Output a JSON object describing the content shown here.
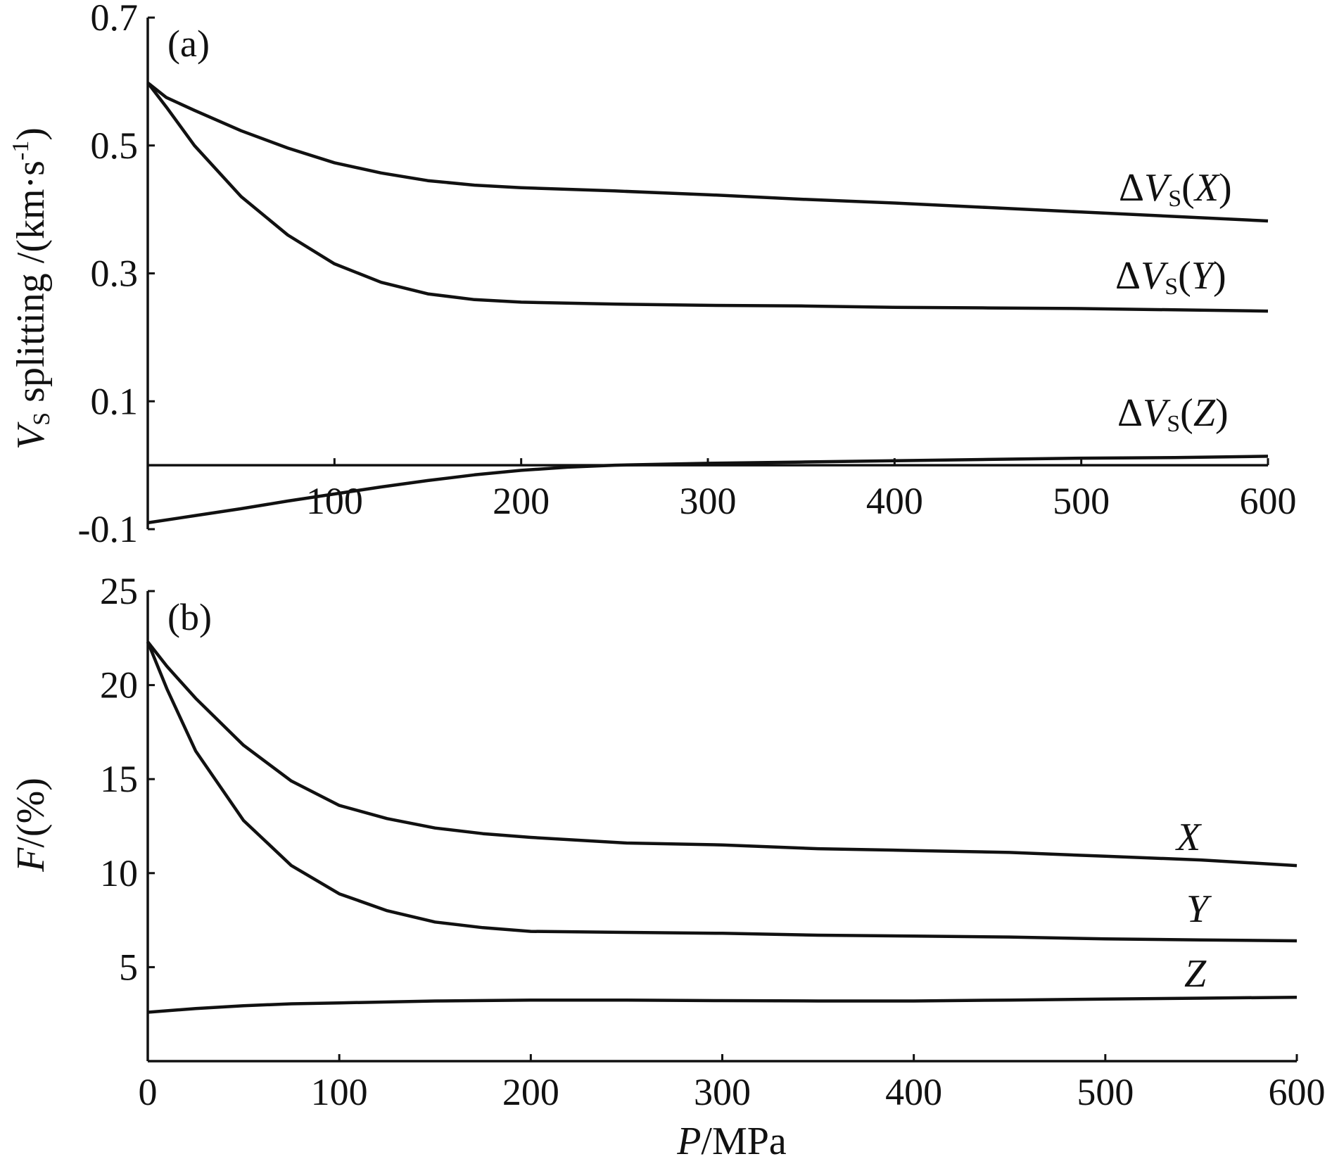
{
  "chart_data": [
    {
      "type": "line",
      "panel_label": "(a)",
      "ylabel_parts": {
        "main": "V",
        "sub": "S",
        "rest": " splitting /(km·s",
        "sup": "-1",
        "close": ")"
      },
      "xlim": [
        0,
        600
      ],
      "ylim": [
        -0.1,
        0.7
      ],
      "xticks": [
        100,
        200,
        300,
        400,
        500,
        600
      ],
      "yticks": [
        -0.1,
        0.1,
        0.3,
        0.5,
        0.7
      ],
      "ytick_labels": [
        "-0.1",
        "0.1",
        "0.3",
        "0.5",
        "0.7"
      ],
      "zero_line": 0,
      "series": [
        {
          "name": "ΔVS(X)",
          "label_parts": {
            "delta": "Δ",
            "v": "V",
            "sub": "S",
            "open": "(",
            "dir": "X",
            "close": ")"
          },
          "x": [
            0,
            10,
            25,
            50,
            75,
            100,
            125,
            150,
            175,
            200,
            250,
            300,
            350,
            400,
            450,
            500,
            550,
            600
          ],
          "y": [
            0.598,
            0.575,
            0.555,
            0.523,
            0.496,
            0.473,
            0.457,
            0.445,
            0.438,
            0.434,
            0.429,
            0.423,
            0.416,
            0.41,
            0.403,
            0.396,
            0.389,
            0.382
          ]
        },
        {
          "name": "ΔVS(Y)",
          "label_parts": {
            "delta": "Δ",
            "v": "V",
            "sub": "S",
            "open": "(",
            "dir": "Y",
            "close": ")"
          },
          "x": [
            0,
            10,
            25,
            50,
            75,
            100,
            125,
            150,
            175,
            200,
            250,
            300,
            350,
            400,
            450,
            500,
            550,
            600
          ],
          "y": [
            0.598,
            0.56,
            0.5,
            0.42,
            0.36,
            0.315,
            0.286,
            0.268,
            0.259,
            0.255,
            0.252,
            0.25,
            0.249,
            0.247,
            0.246,
            0.245,
            0.243,
            0.241
          ]
        },
        {
          "name": "ΔVS(Z)",
          "label_parts": {
            "delta": "Δ",
            "v": "V",
            "sub": "S",
            "open": "(",
            "dir": "Z",
            "close": ")"
          },
          "x": [
            0,
            25,
            50,
            75,
            100,
            125,
            150,
            175,
            200,
            225,
            250,
            300,
            350,
            400,
            450,
            500,
            550,
            600
          ],
          "y": [
            -0.09,
            -0.079,
            -0.068,
            -0.056,
            -0.045,
            -0.034,
            -0.024,
            -0.015,
            -0.008,
            -0.003,
            0.0,
            0.003,
            0.005,
            0.007,
            0.009,
            0.011,
            0.012,
            0.014
          ]
        }
      ]
    },
    {
      "type": "line",
      "panel_label": "(b)",
      "ylabel_parts": {
        "main": "F",
        "rest": "/(%)"
      },
      "xlabel_parts": {
        "main": "P",
        "rest": "/MPa"
      },
      "xlim": [
        0,
        600
      ],
      "ylim": [
        0,
        25
      ],
      "xticks": [
        0,
        100,
        200,
        300,
        400,
        500,
        600
      ],
      "yticks": [
        5,
        10,
        15,
        20,
        25
      ],
      "series": [
        {
          "name": "X",
          "x": [
            0,
            10,
            25,
            50,
            75,
            100,
            125,
            150,
            175,
            200,
            250,
            300,
            350,
            400,
            450,
            500,
            550,
            600
          ],
          "y": [
            22.3,
            21.0,
            19.3,
            16.8,
            14.9,
            13.6,
            12.9,
            12.4,
            12.1,
            11.9,
            11.6,
            11.5,
            11.3,
            11.2,
            11.1,
            10.9,
            10.7,
            10.4
          ]
        },
        {
          "name": "Y",
          "x": [
            0,
            10,
            25,
            50,
            75,
            100,
            125,
            150,
            175,
            200,
            250,
            300,
            350,
            400,
            450,
            500,
            550,
            600
          ],
          "y": [
            22.3,
            19.8,
            16.5,
            12.8,
            10.4,
            8.9,
            8.0,
            7.4,
            7.1,
            6.9,
            6.85,
            6.8,
            6.7,
            6.65,
            6.6,
            6.5,
            6.45,
            6.4
          ]
        },
        {
          "name": "Z",
          "x": [
            0,
            25,
            50,
            75,
            100,
            150,
            200,
            250,
            300,
            350,
            400,
            450,
            500,
            550,
            600
          ],
          "y": [
            2.6,
            2.8,
            2.95,
            3.05,
            3.1,
            3.2,
            3.25,
            3.25,
            3.22,
            3.2,
            3.2,
            3.25,
            3.3,
            3.35,
            3.4
          ]
        }
      ]
    }
  ]
}
